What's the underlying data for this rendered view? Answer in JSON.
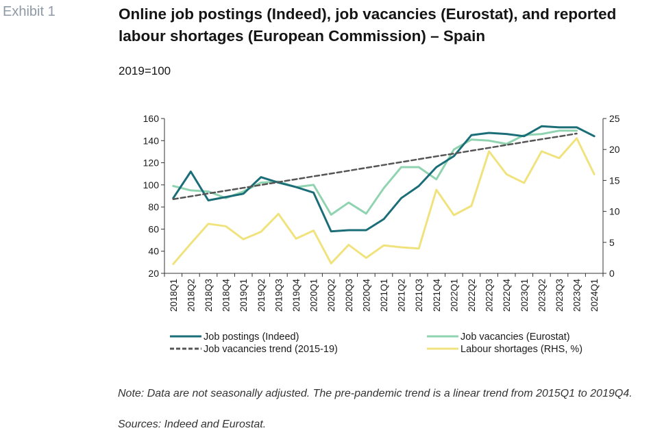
{
  "exhibit": "Exhibit 1",
  "title": "Online job postings (Indeed), job vacancies (Eurostat), and reported labour shortages (European Commission) – Spain",
  "subtitle": "2019=100",
  "note": "Note: Data are not seasonally adjusted. The pre-pandemic trend is a linear trend from 2015Q1 to 2019Q4.",
  "sources": "Sources: Indeed and Eurostat.",
  "chart_data": {
    "type": "line",
    "categories": [
      "2018Q1",
      "2018Q2",
      "2018Q3",
      "2018Q4",
      "2019Q1",
      "2019Q2",
      "2019Q3",
      "2019Q4",
      "2020Q1",
      "2020Q2",
      "2020Q3",
      "2020Q4",
      "2021Q1",
      "2021Q2",
      "2021Q3",
      "2021Q4",
      "2022Q1",
      "2022Q2",
      "2022Q3",
      "2022Q4",
      "2023Q1",
      "2023Q2",
      "2023Q3",
      "2023Q4",
      "2024Q1"
    ],
    "ylim_left": [
      20,
      160
    ],
    "yticks_left": [
      20,
      40,
      60,
      80,
      100,
      120,
      140,
      160
    ],
    "ylim_right": [
      0,
      25
    ],
    "yticks_right": [
      0,
      5,
      10,
      15,
      20,
      25
    ],
    "grid": false,
    "legend_position": "bottom",
    "series": [
      {
        "name": "Job postings (Indeed)",
        "axis": "left",
        "color": "#1b6e78",
        "dash": false,
        "values": [
          88,
          112,
          86,
          89,
          92,
          107,
          102,
          98,
          93,
          58,
          59,
          59,
          69,
          88,
          99,
          116,
          126,
          145,
          147,
          146,
          144,
          153,
          152,
          152,
          144
        ]
      },
      {
        "name": "Job vacancies (Eurostat)",
        "axis": "left",
        "color": "#8fd3b0",
        "dash": false,
        "values": [
          99,
          95,
          94,
          88,
          94,
          102,
          103,
          98,
          100,
          73,
          84,
          74,
          97,
          116,
          116,
          105,
          132,
          141,
          140,
          137,
          145,
          146,
          149,
          149,
          null
        ]
      },
      {
        "name": "Job vacancies trend (2015-19)",
        "axis": "left",
        "color": "#555555",
        "dash": true,
        "values": [
          87,
          89.6,
          92.2,
          94.7,
          97.3,
          99.9,
          102.5,
          105.1,
          107.7,
          110.2,
          112.8,
          115.4,
          118,
          120.6,
          123.2,
          125.8,
          128.3,
          130.9,
          133.5,
          136.1,
          138.7,
          141.3,
          143.8,
          146.4,
          null
        ]
      },
      {
        "name": "Labour shortages (RHS, %)",
        "axis": "right",
        "color": "#f0e27c",
        "dash": false,
        "values": [
          1.5,
          4.8,
          8,
          7.6,
          5.5,
          6.7,
          9.6,
          5.6,
          6.9,
          1.6,
          4.6,
          2.5,
          4.5,
          4.2,
          4,
          13.5,
          9.4,
          10.9,
          19.7,
          16,
          14.6,
          19.7,
          18.6,
          21.8,
          16
        ]
      }
    ]
  }
}
